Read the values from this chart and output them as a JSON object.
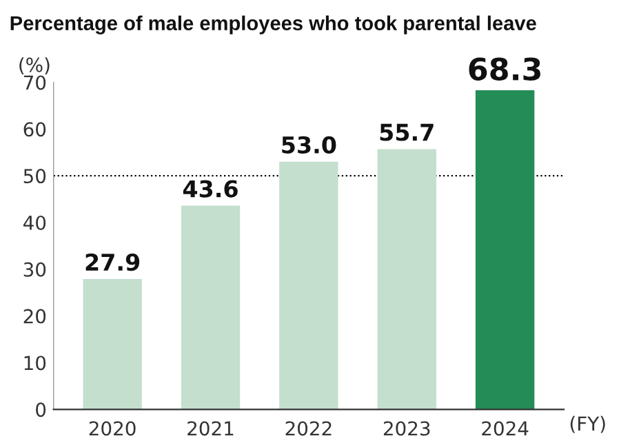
{
  "chart_data": {
    "type": "bar",
    "title": "Percentage of male employees who took parental leave",
    "ylabel": "(%)",
    "xlabel": "(FY)",
    "categories": [
      "2020",
      "2021",
      "2022",
      "2023",
      "2024"
    ],
    "values": [
      27.9,
      43.6,
      53.0,
      55.7,
      68.3
    ],
    "colors": [
      "#c5dfcf",
      "#c5dfcf",
      "#c5dfcf",
      "#c5dfcf",
      "#238c57"
    ],
    "value_labels": [
      "27.9",
      "43.6",
      "53.0",
      "55.7",
      "68.3"
    ],
    "ylim": [
      0,
      70
    ],
    "yticks": [
      0,
      10,
      20,
      30,
      40,
      50,
      60,
      70
    ],
    "ref_lines": [
      {
        "axis": "y",
        "value": 50,
        "label": null,
        "color": "#000000",
        "line_style": "dotted"
      }
    ],
    "grid": false,
    "legend": false
  }
}
